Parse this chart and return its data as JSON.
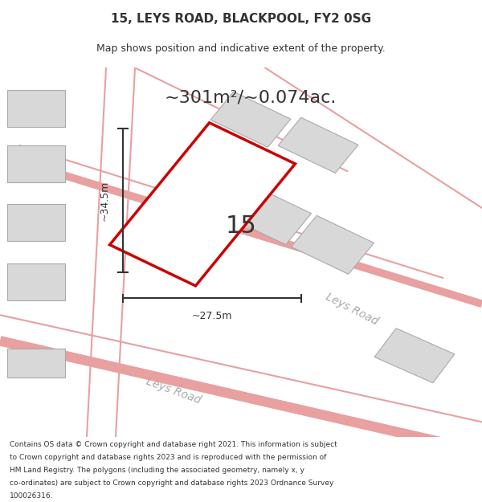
{
  "title_line1": "15, LEYS ROAD, BLACKPOOL, FY2 0SG",
  "title_line2": "Map shows position and indicative extent of the property.",
  "area_text": "~301m²/~0.074ac.",
  "number_label": "15",
  "dim_height": "~34.5m",
  "dim_width": "~27.5m",
  "road_label1": "Leys Road",
  "road_label2": "Leys Road",
  "footer_lines": [
    "Contains OS data © Crown copyright and database right 2021. This information is subject",
    "to Crown copyright and database rights 2023 and is reproduced with the permission of",
    "HM Land Registry. The polygons (including the associated geometry, namely x, y",
    "co-ordinates) are subject to Crown copyright and database rights 2023 Ordnance Survey",
    "100026316."
  ],
  "bg_color": "#ffffff",
  "map_bg": "#f5f5f5",
  "plot_fill": "#ffffff",
  "plot_edge": "#cc0000",
  "neighbor_fill": "#d8d8d8",
  "neighbor_edge": "#aaaaaa",
  "road_line_color": "#e8a0a0",
  "dim_line_color": "#333333",
  "text_color": "#333333",
  "road_text_color": "#aaaaaa"
}
